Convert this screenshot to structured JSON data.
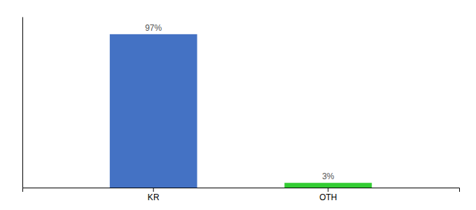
{
  "chart_data": {
    "type": "bar",
    "categories": [
      "KR",
      "OTH"
    ],
    "values": [
      97,
      3
    ],
    "value_labels": [
      "97%",
      "3%"
    ],
    "colors": [
      "#4472c4",
      "#33cc33"
    ],
    "ylim": [
      0,
      108
    ],
    "data_labels": true,
    "tick_labels": "x"
  }
}
